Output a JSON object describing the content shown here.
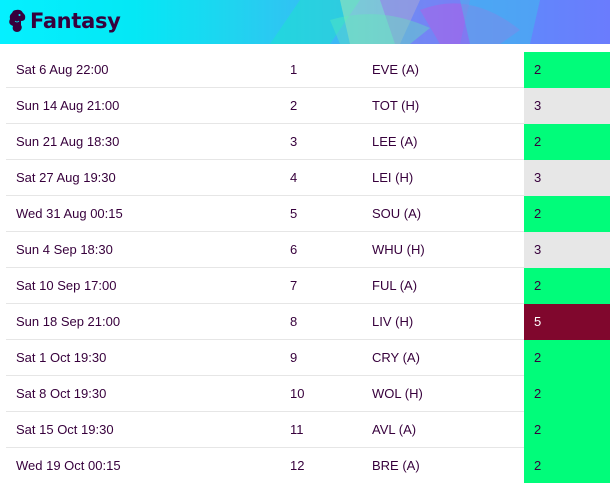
{
  "header": {
    "brand": "Fantasy",
    "logo_icon": "lion-crest-icon",
    "gradient_colors": [
      "#05f0ff",
      "#3cb8f5",
      "#6a7cfd"
    ]
  },
  "fdr_colors": {
    "2": "#01fc7a",
    "3": "#e7e7e7",
    "5": "#80072d"
  },
  "fixtures": [
    {
      "date": "Sat 6 Aug 22:00",
      "gameweek": "1",
      "opponent": "EVE (A)",
      "difficulty": "2"
    },
    {
      "date": "Sun 14 Aug 21:00",
      "gameweek": "2",
      "opponent": "TOT (H)",
      "difficulty": "3"
    },
    {
      "date": "Sun 21 Aug 18:30",
      "gameweek": "3",
      "opponent": "LEE (A)",
      "difficulty": "2"
    },
    {
      "date": "Sat 27 Aug 19:30",
      "gameweek": "4",
      "opponent": "LEI (H)",
      "difficulty": "3"
    },
    {
      "date": "Wed 31 Aug 00:15",
      "gameweek": "5",
      "opponent": "SOU (A)",
      "difficulty": "2"
    },
    {
      "date": "Sun 4 Sep 18:30",
      "gameweek": "6",
      "opponent": "WHU (H)",
      "difficulty": "3"
    },
    {
      "date": "Sat 10 Sep 17:00",
      "gameweek": "7",
      "opponent": "FUL (A)",
      "difficulty": "2"
    },
    {
      "date": "Sun 18 Sep 21:00",
      "gameweek": "8",
      "opponent": "LIV (H)",
      "difficulty": "5"
    },
    {
      "date": "Sat 1 Oct 19:30",
      "gameweek": "9",
      "opponent": "CRY (A)",
      "difficulty": "2"
    },
    {
      "date": "Sat 8 Oct 19:30",
      "gameweek": "10",
      "opponent": "WOL (H)",
      "difficulty": "2"
    },
    {
      "date": "Sat 15 Oct 19:30",
      "gameweek": "11",
      "opponent": "AVL (A)",
      "difficulty": "2"
    },
    {
      "date": "Wed 19 Oct 00:15",
      "gameweek": "12",
      "opponent": "BRE (A)",
      "difficulty": "2"
    }
  ]
}
